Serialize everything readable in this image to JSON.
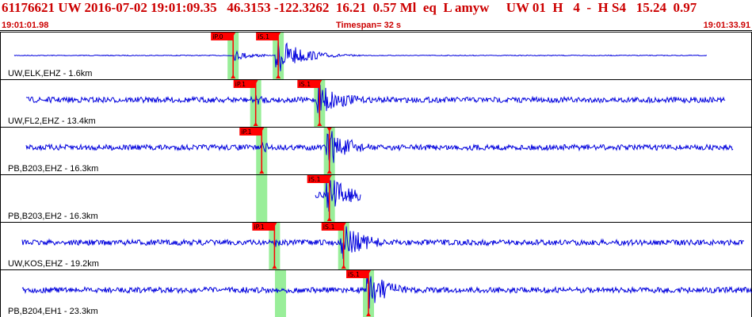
{
  "header": {
    "event_line": "61176621 UW 2016-07-02 19:01:09.35   46.3153 -122.3262  16.21  0.57 Ml  eq  L amyw     UW 01  H   4  -  H S4   15.24  0.97"
  },
  "timebar": {
    "start": "19:01:01.98",
    "timespan": "Timespan=  32 s",
    "end": "19:01:33.91"
  },
  "colors": {
    "trace": "#0000dd",
    "pick_flag": "#ff0000",
    "pick_window": "#99ee99",
    "label_text": "#000000",
    "header_text": "#cc0000"
  },
  "channels": [
    {
      "label": "UW,ELK,EHZ - 1.6km",
      "trace_active": [
        0.02,
        0.94
      ],
      "pick_windows": [
        0.31,
        0.37
      ],
      "picks": [
        {
          "label": "iP.0",
          "time": 0.31
        },
        {
          "label": "iS.1",
          "time": 0.37
        }
      ]
    },
    {
      "label": "UW,FL2,EHZ - 13.4km",
      "trace_active": [
        0.035,
        0.965
      ],
      "pick_windows": [
        0.34,
        0.425
      ],
      "picks": [
        {
          "label": "iP.1",
          "time": 0.34
        },
        {
          "label": "iS.1",
          "time": 0.425
        }
      ]
    },
    {
      "label": "PB,B203,EHZ - 16.3km",
      "trace_active": [
        0.035,
        0.975
      ],
      "pick_windows": [
        0.348,
        0.438
      ],
      "picks": [
        {
          "label": "iP.1",
          "time": 0.348
        },
        {
          "label": "",
          "time": 0.438
        }
      ]
    },
    {
      "label": "PB,B203,EH2 - 16.3km",
      "trace_active": [
        0.42,
        0.48
      ],
      "pick_windows": [
        0.348,
        0.438
      ],
      "picks": [
        {
          "label": "iS.1",
          "time": 0.438
        }
      ]
    },
    {
      "label": "UW,KOS,EHZ - 19.2km",
      "trace_active": [
        0.03,
        0.99
      ],
      "pick_windows": [
        0.365,
        0.457
      ],
      "picks": [
        {
          "label": "iP.1",
          "time": 0.365
        },
        {
          "label": "iS.1",
          "time": 0.457
        }
      ]
    },
    {
      "label": "PB,B204,EH1 - 23.3km",
      "trace_active": [
        0.03,
        1.0
      ],
      "pick_windows": [
        0.373,
        0.49
      ],
      "picks": [
        {
          "label": "iS.1",
          "time": 0.49
        }
      ]
    }
  ]
}
